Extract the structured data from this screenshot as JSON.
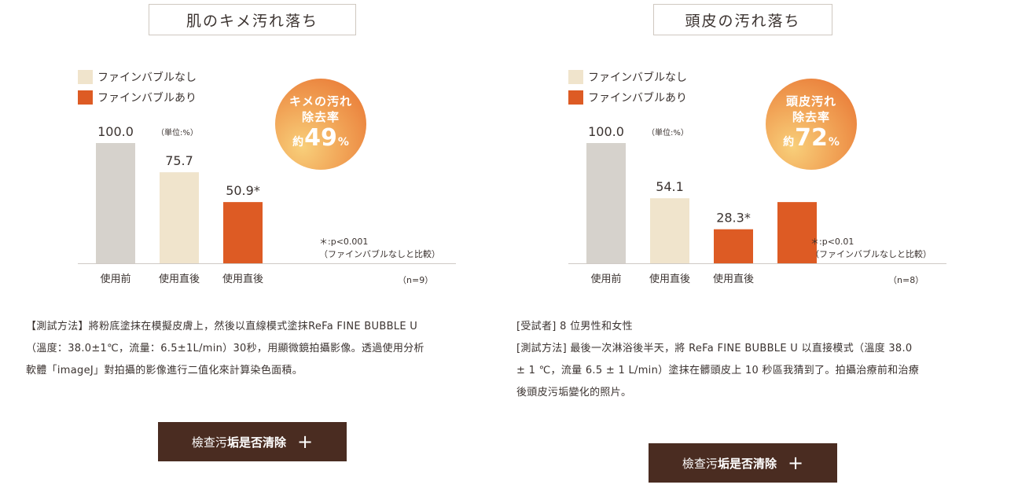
{
  "colors": {
    "before": "#d6d2cc",
    "without_bubble": "#f0e4cc",
    "with_bubble": "#dd5b24",
    "button_bg": "#4a2c21",
    "axis": "#cfcac5"
  },
  "left": {
    "title": "肌のキメ汚れ落ち",
    "legend": [
      {
        "label": "ファインバブルなし"
      },
      {
        "label": "ファインバブルあり"
      }
    ],
    "unit_note": "（単位:%）",
    "badge": {
      "line1": "キメの汚れ",
      "line2": "除去率",
      "prefix": "約",
      "value": "49",
      "suffix": "%"
    },
    "footnote_line1": "＊:p<0.001",
    "footnote_line2": "（ファインバブルなしと比較）",
    "n_label": "（n=9）",
    "method_lines": [
      "【測試方法】將粉底塗抹在模擬皮膚上，然後以直線模式塗抹ReFa FINE BUBBLE U",
      "（溫度：38.0±1℃，流量：6.5±1L/min）30秒，用顯微鏡拍攝影像。透過使用分析",
      "軟體「imageJ」對拍攝的影像進行二值化來計算染色面積。"
    ],
    "button": {
      "label_light": "檢查污",
      "label_bold": "垢是否清除",
      "plus": "+"
    }
  },
  "right": {
    "title": "頭皮の汚れ落ち",
    "legend": [
      {
        "label": "ファインバブルなし"
      },
      {
        "label": "ファインバブルあり"
      }
    ],
    "unit_note": "（単位:%）",
    "badge": {
      "line1": "頭皮汚れ",
      "line2": "除去率",
      "prefix": "約",
      "value": "72",
      "suffix": "%"
    },
    "footnote_line1": "＊:p<0.01",
    "footnote_line2": "（ファインバブルなしと比較）",
    "n_label": "（n=8）",
    "method_lines": [
      "[受試者] 8 位男性和女性",
      "[測試方法] 最後一次淋浴後半天，將 ReFa FINE BUBBLE U 以直接模式（溫度 38.0",
      "± 1 ℃，流量 6.5 ± 1 L/min）塗抹在髒頭皮上 10 秒區我猜到了。拍攝治療前和治療",
      "後頭皮污垢變化的照片。"
    ],
    "button": {
      "label_light": "檢查污",
      "label_bold": "垢是否清除",
      "plus": "+"
    }
  },
  "chart_data": [
    {
      "type": "bar",
      "title": "肌のキメ汚れ落ち",
      "categories": [
        "使用前",
        "使用直後",
        "使用直後"
      ],
      "values": [
        100.0,
        75.7,
        50.9
      ],
      "value_labels": [
        "100.0",
        "75.7",
        "50.9*"
      ],
      "bar_colors": [
        "#d6d2cc",
        "#f0e4cc",
        "#dd5b24"
      ],
      "unit": "（単位:%）",
      "ylim": [
        0,
        100
      ]
    },
    {
      "type": "bar",
      "title": "頭皮の汚れ落ち",
      "categories": [
        "使用前",
        "使用直後",
        "使用直後",
        ""
      ],
      "values": [
        100.0,
        54.1,
        28.3,
        50.9
      ],
      "value_labels": [
        "100.0",
        "54.1",
        "28.3*",
        ""
      ],
      "bar_colors": [
        "#d6d2cc",
        "#f0e4cc",
        "#dd5b24",
        "#dd5b24"
      ],
      "unit": "（単位:%）",
      "ylim": [
        0,
        100
      ]
    }
  ]
}
